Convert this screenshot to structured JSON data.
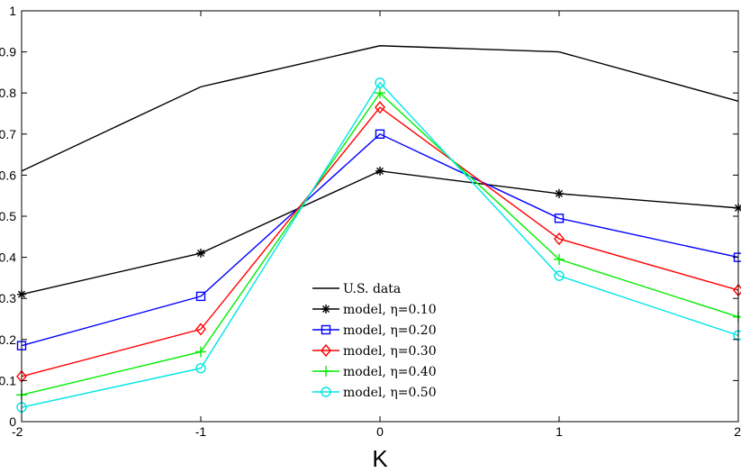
{
  "chart_data": {
    "type": "line",
    "xlabel": "K",
    "ylabel": "",
    "title": "",
    "x": [
      -2,
      -1,
      0,
      1,
      2
    ],
    "xlim": [
      -2,
      2
    ],
    "ylim": [
      0,
      1
    ],
    "xticks": [
      "-2",
      "-1",
      "0",
      "1",
      "2"
    ],
    "yticks": [
      "0",
      "0.1",
      "0.2",
      "0.3",
      "0.4",
      "0.5",
      "0.6",
      "0.7",
      "0.8",
      "0.9",
      "1"
    ],
    "grid": false,
    "legend_position": "bottom-center",
    "series": [
      {
        "name": "U.S. data",
        "color": "#000000",
        "marker": "none",
        "values": [
          0.61,
          0.815,
          0.915,
          0.9,
          0.78
        ]
      },
      {
        "name": "model, η=0.10",
        "color": "#000000",
        "marker": "asterisk",
        "values": [
          0.31,
          0.41,
          0.61,
          0.555,
          0.52
        ]
      },
      {
        "name": "model, η=0.20",
        "color": "#0000ff",
        "marker": "square",
        "values": [
          0.185,
          0.305,
          0.7,
          0.495,
          0.4
        ]
      },
      {
        "name": "model, η=0.30",
        "color": "#ff0000",
        "marker": "diamond",
        "values": [
          0.11,
          0.225,
          0.765,
          0.445,
          0.32
        ]
      },
      {
        "name": "model, η=0.40",
        "color": "#00ee00",
        "marker": "plus",
        "values": [
          0.065,
          0.17,
          0.8,
          0.395,
          0.255
        ]
      },
      {
        "name": "model, η=0.50",
        "color": "#00e5e5",
        "marker": "circle",
        "values": [
          0.035,
          0.13,
          0.825,
          0.355,
          0.21
        ]
      }
    ]
  }
}
